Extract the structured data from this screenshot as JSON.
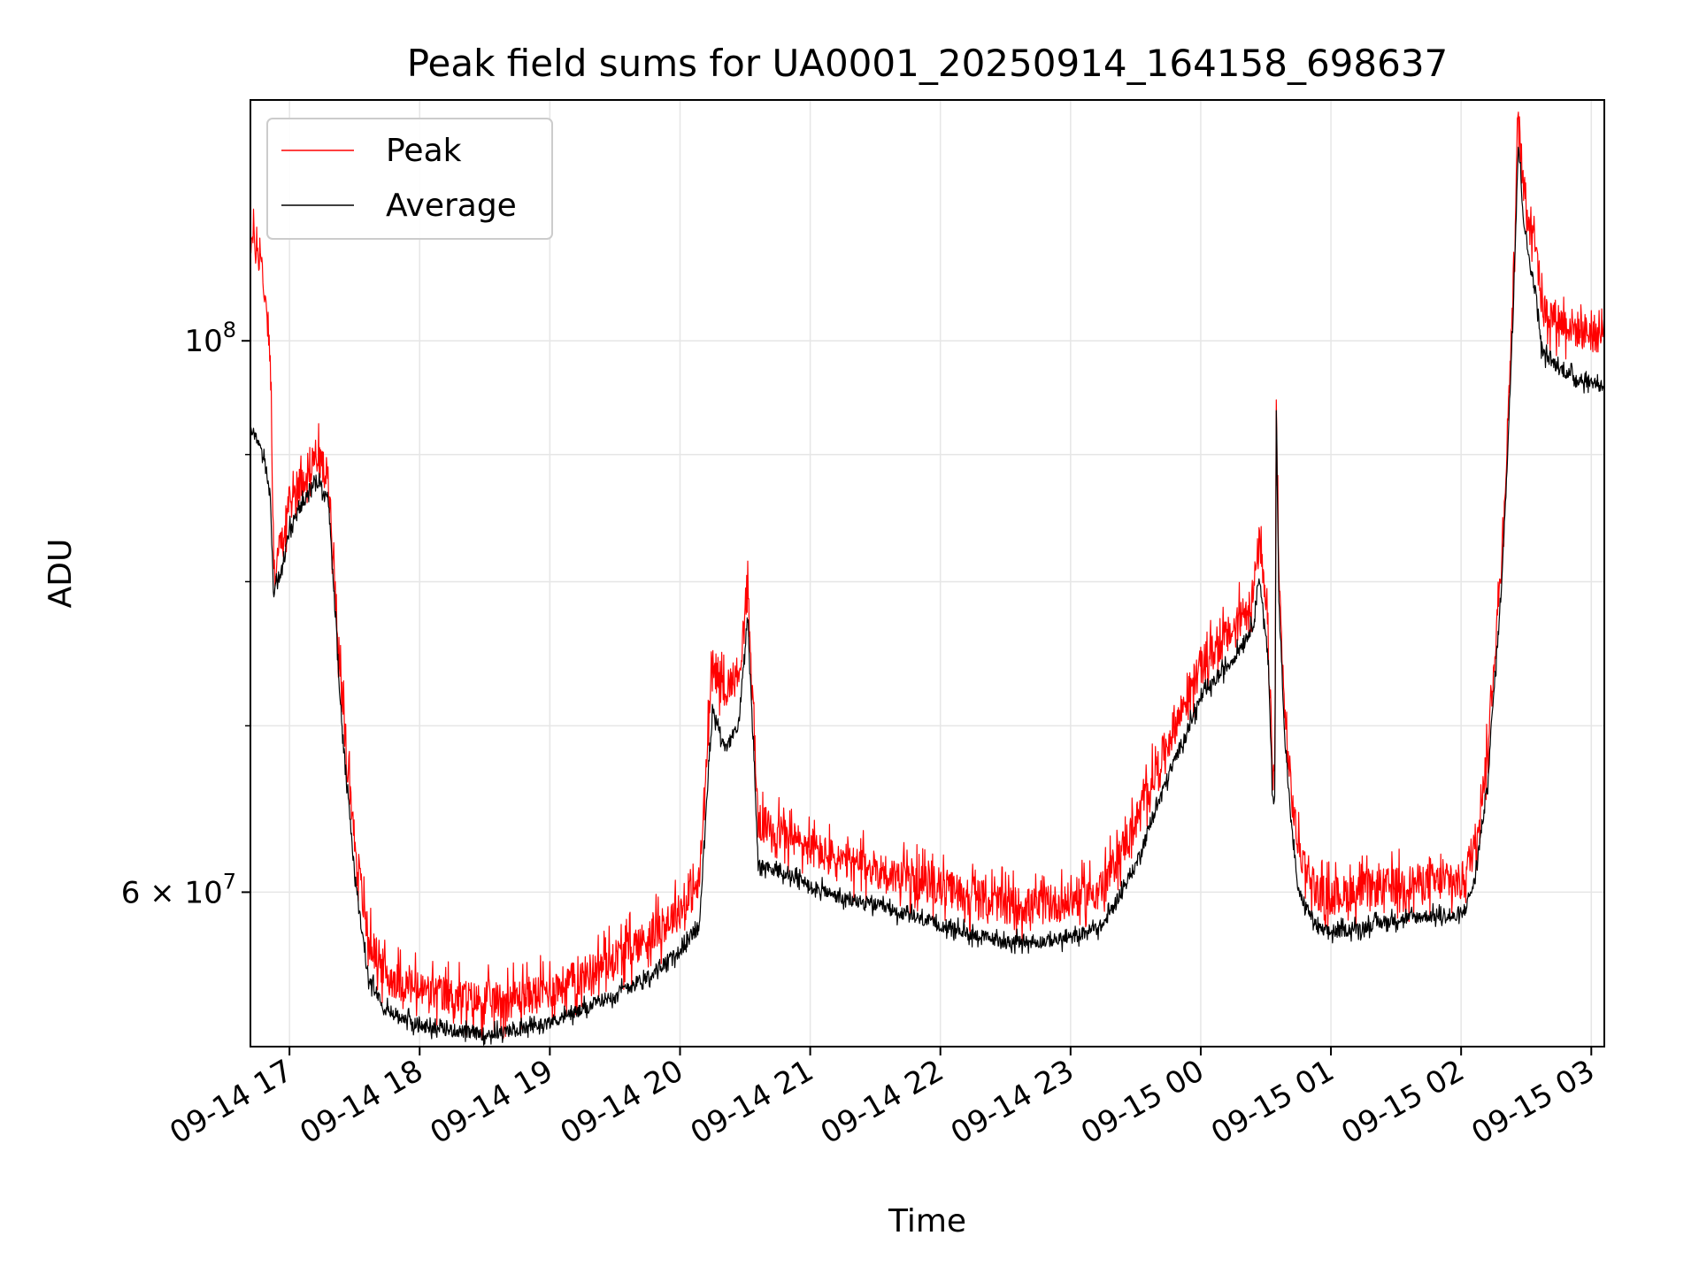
{
  "chart_data": {
    "type": "line",
    "title": "Peak field sums for UA0001_20250914_164158_698637",
    "xlabel": "Time",
    "ylabel": "ADU",
    "yscale": "log",
    "ylim": [
      52000000,
      125000000
    ],
    "xlim_hours": [
      16.7,
      27.1
    ],
    "grid": true,
    "legend_position": "upper-left",
    "x_ticks": [
      {
        "hour": 17,
        "label": "09-14 17"
      },
      {
        "hour": 18,
        "label": "09-14 18"
      },
      {
        "hour": 19,
        "label": "09-14 19"
      },
      {
        "hour": 20,
        "label": "09-14 20"
      },
      {
        "hour": 21,
        "label": "09-14 21"
      },
      {
        "hour": 22,
        "label": "09-14 22"
      },
      {
        "hour": 23,
        "label": "09-14 23"
      },
      {
        "hour": 24,
        "label": "09-15 00"
      },
      {
        "hour": 25,
        "label": "09-15 01"
      },
      {
        "hour": 26,
        "label": "09-15 02"
      },
      {
        "hour": 27,
        "label": "09-15 03"
      }
    ],
    "y_major_ticks": [
      {
        "value": 100000000,
        "base": "10",
        "exp": "8"
      },
      {
        "value": 60000000,
        "base": "6 × 10",
        "exp": "7"
      }
    ],
    "y_minor_ticks": [
      70000000,
      80000000,
      90000000
    ],
    "series": [
      {
        "name": "Peak",
        "color": "#ff0000",
        "points": [
          [
            16.7,
            110000000
          ],
          [
            16.78,
            108000000
          ],
          [
            16.85,
            100000000
          ],
          [
            16.88,
            80000000
          ],
          [
            16.9,
            82000000
          ],
          [
            16.95,
            83000000
          ],
          [
            17.0,
            86000000
          ],
          [
            17.1,
            88000000
          ],
          [
            17.2,
            90000000
          ],
          [
            17.3,
            88000000
          ],
          [
            17.4,
            72000000
          ],
          [
            17.5,
            63000000
          ],
          [
            17.6,
            57500000
          ],
          [
            17.75,
            55500000
          ],
          [
            18.0,
            54800000
          ],
          [
            18.25,
            54500000
          ],
          [
            18.5,
            54200000
          ],
          [
            18.75,
            54400000
          ],
          [
            19.0,
            54800000
          ],
          [
            19.25,
            55500000
          ],
          [
            19.5,
            56500000
          ],
          [
            19.75,
            57500000
          ],
          [
            20.0,
            59000000
          ],
          [
            20.15,
            60500000
          ],
          [
            20.25,
            74000000
          ],
          [
            20.35,
            72500000
          ],
          [
            20.45,
            73500000
          ],
          [
            20.52,
            79000000
          ],
          [
            20.6,
            64000000
          ],
          [
            20.75,
            63500000
          ],
          [
            21.0,
            62500000
          ],
          [
            21.25,
            61700000
          ],
          [
            21.5,
            61300000
          ],
          [
            21.75,
            60700000
          ],
          [
            22.0,
            60300000
          ],
          [
            22.25,
            59800000
          ],
          [
            22.5,
            59300000
          ],
          [
            22.75,
            59200000
          ],
          [
            23.0,
            59500000
          ],
          [
            23.25,
            60300000
          ],
          [
            23.5,
            64000000
          ],
          [
            23.75,
            69000000
          ],
          [
            24.0,
            74000000
          ],
          [
            24.25,
            76500000
          ],
          [
            24.4,
            79000000
          ],
          [
            24.45,
            83000000
          ],
          [
            24.52,
            76000000
          ],
          [
            24.55,
            67000000
          ],
          [
            24.57,
            67000000
          ],
          [
            24.58,
            95000000
          ],
          [
            24.6,
            80000000
          ],
          [
            24.65,
            70000000
          ],
          [
            24.7,
            65500000
          ],
          [
            24.75,
            62500000
          ],
          [
            24.9,
            60000000
          ],
          [
            25.0,
            59800000
          ],
          [
            25.25,
            60100000
          ],
          [
            25.5,
            60400000
          ],
          [
            25.75,
            60600000
          ],
          [
            26.0,
            60500000
          ],
          [
            26.1,
            62500000
          ],
          [
            26.2,
            68000000
          ],
          [
            26.3,
            80000000
          ],
          [
            26.35,
            90000000
          ],
          [
            26.4,
            105000000
          ],
          [
            26.44,
            123000000
          ],
          [
            26.48,
            115000000
          ],
          [
            26.52,
            112000000
          ],
          [
            26.58,
            110000000
          ],
          [
            26.62,
            103000000
          ],
          [
            26.75,
            102000000
          ],
          [
            26.9,
            101000000
          ],
          [
            27.1,
            100500000
          ]
        ]
      },
      {
        "name": "Average",
        "color": "#000000",
        "points": [
          [
            16.7,
            92000000
          ],
          [
            16.78,
            91000000
          ],
          [
            16.85,
            87000000
          ],
          [
            16.88,
            78500000
          ],
          [
            16.9,
            80000000
          ],
          [
            16.95,
            81000000
          ],
          [
            17.0,
            84000000
          ],
          [
            17.1,
            86000000
          ],
          [
            17.2,
            88000000
          ],
          [
            17.3,
            86000000
          ],
          [
            17.4,
            70000000
          ],
          [
            17.5,
            61000000
          ],
          [
            17.6,
            55500000
          ],
          [
            17.75,
            53800000
          ],
          [
            18.0,
            53000000
          ],
          [
            18.25,
            52800000
          ],
          [
            18.5,
            52600000
          ],
          [
            18.75,
            52800000
          ],
          [
            19.0,
            53200000
          ],
          [
            19.25,
            53800000
          ],
          [
            19.5,
            54600000
          ],
          [
            19.75,
            55500000
          ],
          [
            20.0,
            56800000
          ],
          [
            20.15,
            58200000
          ],
          [
            20.25,
            71000000
          ],
          [
            20.35,
            68500000
          ],
          [
            20.45,
            70000000
          ],
          [
            20.52,
            77500000
          ],
          [
            20.6,
            61500000
          ],
          [
            20.75,
            61200000
          ],
          [
            21.0,
            60400000
          ],
          [
            21.25,
            59600000
          ],
          [
            21.5,
            59300000
          ],
          [
            21.75,
            58700000
          ],
          [
            22.0,
            58200000
          ],
          [
            22.25,
            57700000
          ],
          [
            22.5,
            57300000
          ],
          [
            22.75,
            57300000
          ],
          [
            23.0,
            57500000
          ],
          [
            23.25,
            58200000
          ],
          [
            23.5,
            61500000
          ],
          [
            23.75,
            66800000
          ],
          [
            24.0,
            71800000
          ],
          [
            24.25,
            74500000
          ],
          [
            24.4,
            76800000
          ],
          [
            24.45,
            80500000
          ],
          [
            24.52,
            74000000
          ],
          [
            24.55,
            65500000
          ],
          [
            24.57,
            65500000
          ],
          [
            24.58,
            94000000
          ],
          [
            24.6,
            78500000
          ],
          [
            24.65,
            68500000
          ],
          [
            24.7,
            63500000
          ],
          [
            24.75,
            60000000
          ],
          [
            24.9,
            58000000
          ],
          [
            25.0,
            57800000
          ],
          [
            25.25,
            58100000
          ],
          [
            25.5,
            58500000
          ],
          [
            25.75,
            58700000
          ],
          [
            26.0,
            58600000
          ],
          [
            26.1,
            60500000
          ],
          [
            26.2,
            66000000
          ],
          [
            26.3,
            78000000
          ],
          [
            26.35,
            88000000
          ],
          [
            26.4,
            103000000
          ],
          [
            26.44,
            120000000
          ],
          [
            26.48,
            112000000
          ],
          [
            26.52,
            108000000
          ],
          [
            26.58,
            104000000
          ],
          [
            26.62,
            99000000
          ],
          [
            26.75,
            97500000
          ],
          [
            26.9,
            96500000
          ],
          [
            27.1,
            96000000
          ]
        ]
      }
    ]
  }
}
